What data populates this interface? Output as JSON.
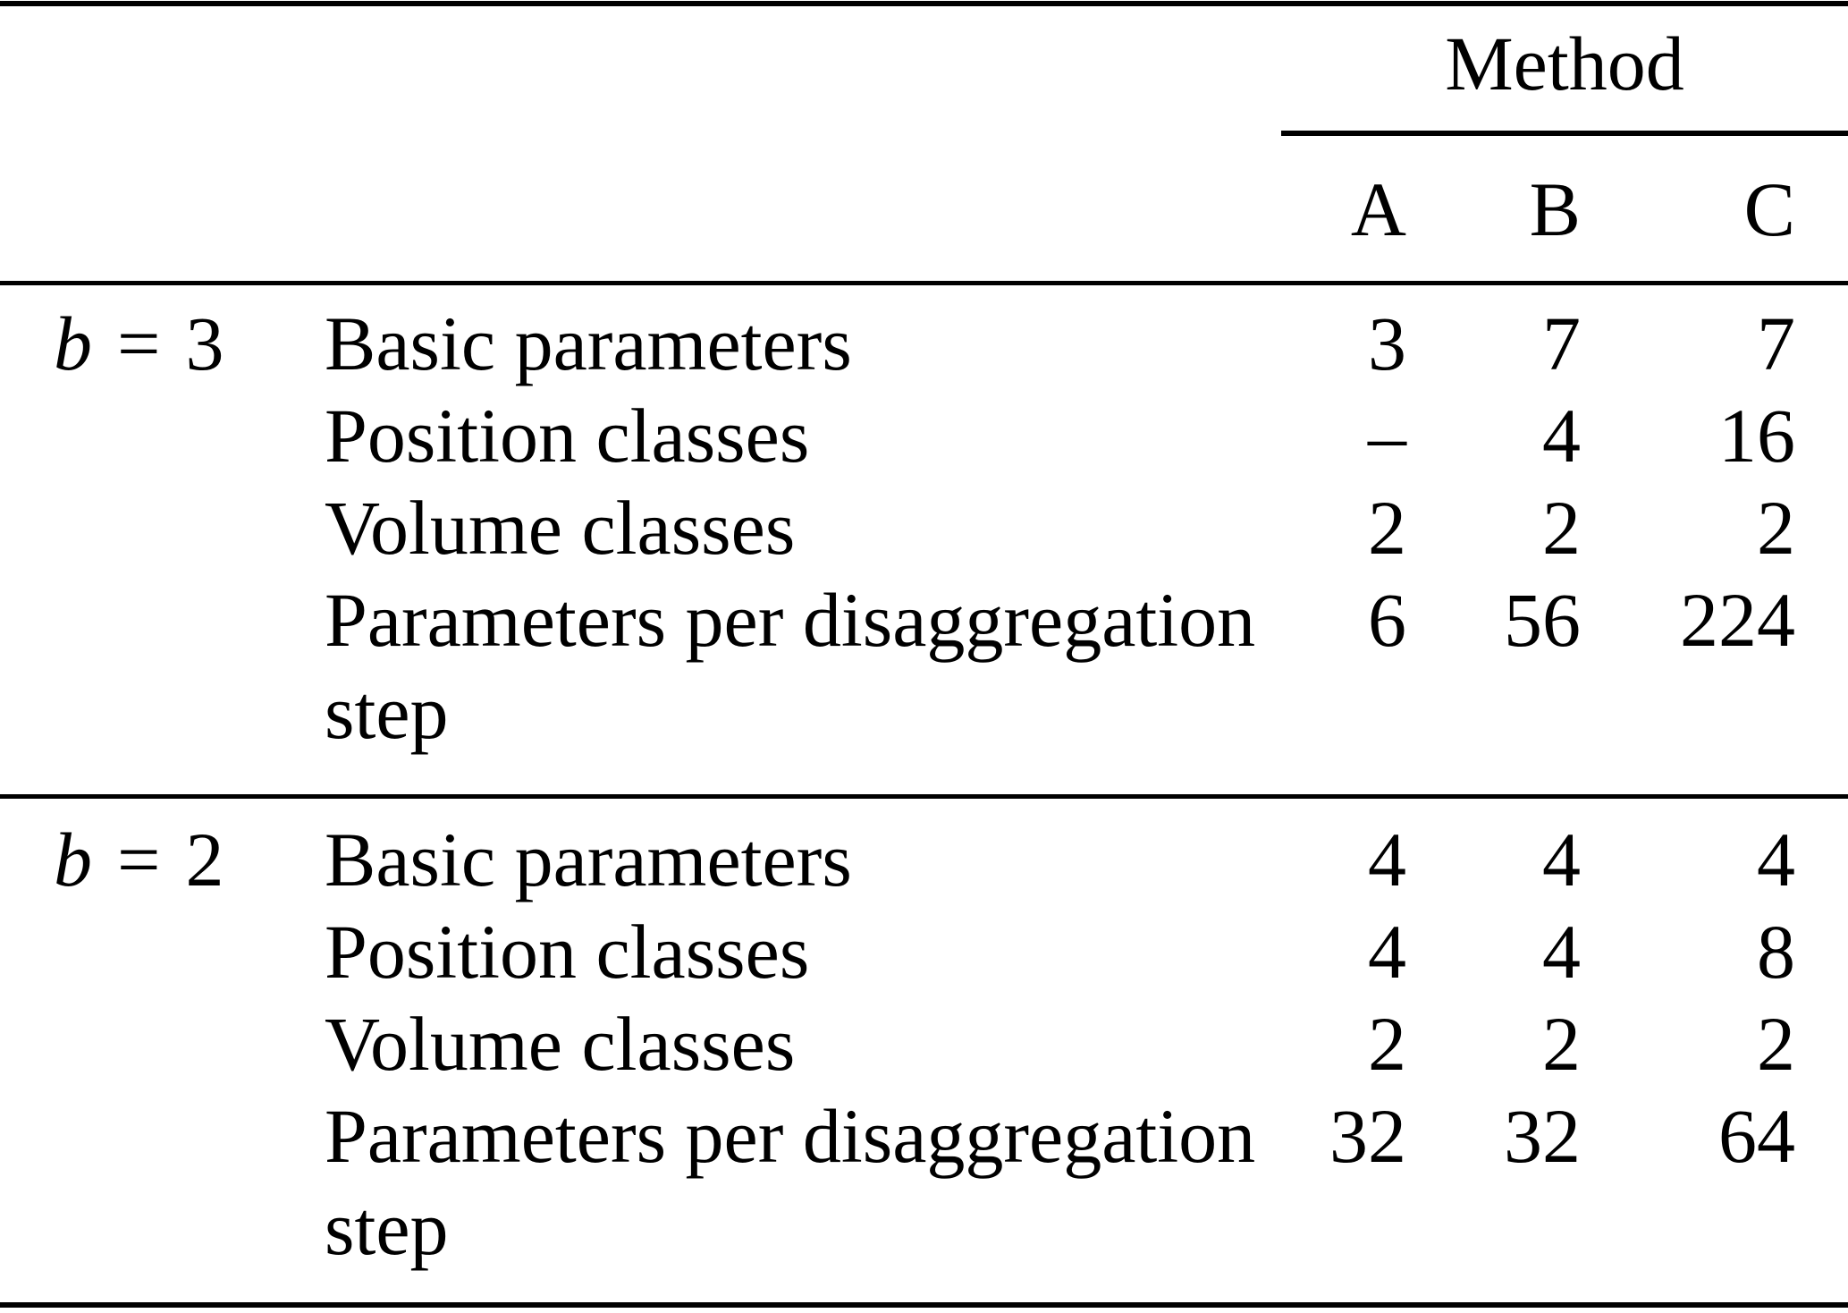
{
  "page": {
    "background_color": "#ffffff",
    "text_color": "#000000",
    "rule_color": "#000000"
  },
  "table": {
    "column_group_title": "Method",
    "column_headers": [
      "A",
      "B",
      "C"
    ],
    "sections": [
      {
        "group": {
          "variable": "b",
          "operator": "=",
          "value": "3"
        },
        "rows": [
          {
            "label": "Basic parameters",
            "values": [
              "3",
              "7",
              "7"
            ]
          },
          {
            "label": "Position classes",
            "values": [
              "–",
              "4",
              "16"
            ]
          },
          {
            "label": "Volume classes",
            "values": [
              "2",
              "2",
              "2"
            ]
          },
          {
            "label": "Parameters per disaggregation step",
            "values": [
              "6",
              "56",
              "224"
            ]
          }
        ]
      },
      {
        "group": {
          "variable": "b",
          "operator": "=",
          "value": "2"
        },
        "rows": [
          {
            "label": "Basic parameters",
            "values": [
              "4",
              "4",
              "4"
            ]
          },
          {
            "label": "Position classes",
            "values": [
              "4",
              "4",
              "8"
            ]
          },
          {
            "label": "Volume classes",
            "values": [
              "2",
              "2",
              "2"
            ]
          },
          {
            "label": "Parameters per disaggregation step",
            "values": [
              "32",
              "32",
              "64"
            ]
          }
        ]
      }
    ]
  }
}
